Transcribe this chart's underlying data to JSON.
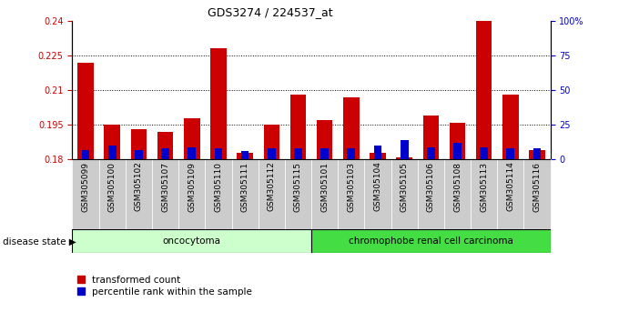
{
  "title": "GDS3274 / 224537_at",
  "samples": [
    "GSM305099",
    "GSM305100",
    "GSM305102",
    "GSM305107",
    "GSM305109",
    "GSM305110",
    "GSM305111",
    "GSM305112",
    "GSM305115",
    "GSM305101",
    "GSM305103",
    "GSM305104",
    "GSM305105",
    "GSM305106",
    "GSM305108",
    "GSM305113",
    "GSM305114",
    "GSM305116"
  ],
  "transformed_count": [
    0.222,
    0.195,
    0.193,
    0.192,
    0.198,
    0.228,
    0.183,
    0.195,
    0.208,
    0.197,
    0.207,
    0.183,
    0.181,
    0.199,
    0.196,
    0.24,
    0.208,
    0.184
  ],
  "percentile_rank": [
    7,
    10,
    7,
    8,
    9,
    8,
    6,
    8,
    8,
    8,
    8,
    10,
    14,
    9,
    12,
    9,
    8,
    8
  ],
  "baseline": 0.18,
  "ylim_left": [
    0.18,
    0.24
  ],
  "ylim_right": [
    0,
    100
  ],
  "yticks_left": [
    0.18,
    0.195,
    0.21,
    0.225,
    0.24
  ],
  "yticks_right": [
    0,
    25,
    50,
    75,
    100
  ],
  "ytick_labels_left": [
    "0.18",
    "0.195",
    "0.21",
    "0.225",
    "0.24"
  ],
  "ytick_labels_right": [
    "0",
    "25",
    "50",
    "75",
    "100%"
  ],
  "groups": [
    {
      "label": "oncocytoma",
      "start": 0,
      "end": 9,
      "color": "#CCFFCC"
    },
    {
      "label": "chromophobe renal cell carcinoma",
      "start": 9,
      "end": 18,
      "color": "#44DD44"
    }
  ],
  "disease_state_label": "disease state",
  "legend": [
    {
      "label": "transformed count",
      "color": "#CC0000"
    },
    {
      "label": "percentile rank within the sample",
      "color": "#0000CC"
    }
  ],
  "bar_color_red": "#CC0000",
  "bar_color_blue": "#0000CC",
  "background_color": "#FFFFFF",
  "xtick_bg_color": "#CCCCCC"
}
